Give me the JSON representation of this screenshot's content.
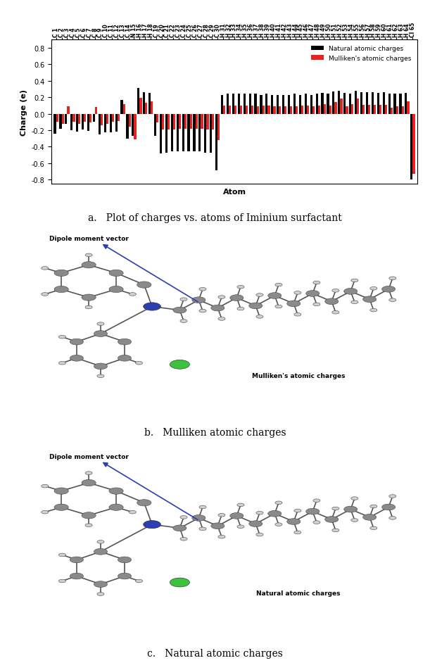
{
  "chart_data": {
    "type": "bar",
    "x_label": "Atom",
    "y_label": "Charge (e)",
    "categories": [
      "C 1",
      "C 2",
      "C 3",
      "C 4",
      "C 5",
      "C 6",
      "C 7",
      "C 8",
      "C 9",
      "C 10",
      "C 11",
      "C 12",
      "C 13",
      "C 14",
      "N 15",
      "H 16",
      "H 17",
      "H 18",
      "C 19",
      "C 20",
      "C 21",
      "C 22",
      "C 23",
      "C 24",
      "C 25",
      "C 26",
      "C 27",
      "C 28",
      "C 29",
      "C 30",
      "H 31",
      "H 32",
      "H 33",
      "H 34",
      "H 35",
      "H 36",
      "H 37",
      "H 38",
      "H 39",
      "H 40",
      "H 41",
      "H 42",
      "H 43",
      "H 44",
      "H 45",
      "H 46",
      "H 47",
      "H 48",
      "H 49",
      "H 50",
      "H 51",
      "H 52",
      "H 53",
      "H 54",
      "H 55",
      "H 56",
      "H 57",
      "H 58",
      "H 59",
      "H 60",
      "H 61",
      "H 62",
      "H 63",
      "H 64",
      "Cl 65"
    ],
    "series": [
      {
        "name": "Natural atomic charges",
        "color": "#000000",
        "values": [
          -0.24,
          -0.18,
          -0.12,
          -0.2,
          -0.22,
          -0.19,
          -0.21,
          -0.1,
          -0.25,
          -0.23,
          -0.23,
          -0.22,
          0.17,
          -0.3,
          -0.27,
          0.31,
          0.26,
          0.25,
          -0.27,
          -0.48,
          -0.47,
          -0.46,
          -0.46,
          -0.46,
          -0.46,
          -0.46,
          -0.46,
          -0.47,
          -0.47,
          -0.69,
          0.23,
          0.24,
          0.24,
          0.24,
          0.24,
          0.24,
          0.24,
          0.23,
          0.24,
          0.23,
          0.23,
          0.23,
          0.23,
          0.24,
          0.23,
          0.24,
          0.23,
          0.24,
          0.25,
          0.24,
          0.27,
          0.28,
          0.25,
          0.24,
          0.28,
          0.26,
          0.26,
          0.26,
          0.25,
          0.26,
          0.24,
          0.24,
          0.24,
          0.25,
          -0.8
        ]
      },
      {
        "name": "Mulliken's atomic charges",
        "color": "#e8231f",
        "values": [
          -0.1,
          -0.12,
          0.09,
          -0.1,
          -0.12,
          -0.1,
          -0.11,
          0.08,
          -0.14,
          -0.12,
          -0.1,
          -0.09,
          0.12,
          -0.16,
          -0.31,
          0.19,
          0.13,
          0.15,
          -0.11,
          -0.19,
          -0.19,
          -0.19,
          -0.18,
          -0.18,
          -0.18,
          -0.18,
          -0.18,
          -0.19,
          -0.19,
          -0.32,
          0.1,
          0.1,
          0.1,
          0.1,
          0.1,
          0.1,
          0.09,
          0.1,
          0.1,
          0.09,
          0.09,
          0.09,
          0.09,
          0.09,
          0.1,
          0.1,
          0.09,
          0.1,
          0.12,
          0.1,
          0.14,
          0.18,
          0.09,
          0.12,
          0.18,
          0.11,
          0.11,
          0.11,
          0.11,
          0.11,
          0.07,
          0.09,
          0.09,
          0.15,
          -0.73
        ]
      }
    ],
    "ylim": [
      -0.85,
      0.9
    ],
    "yticks": [
      -0.8,
      -0.6,
      -0.4,
      -0.2,
      {
        "value": 0,
        "label": "0.0"
      },
      0.2,
      0.4,
      0.6,
      0.8
    ],
    "legend": "upper right"
  },
  "captions": [
    "a.   Plot of charges vs. atoms of Iminium surfactant",
    "b.   Mulliken atomic charges",
    "c.   Natural atomic charges"
  ],
  "diagrams": [
    {
      "vector_label": "Dipole moment vector",
      "name": "Mulliken's atomic charges"
    },
    {
      "vector_label": "Dipole moment vector",
      "name": "Natural atomic charges"
    }
  ]
}
